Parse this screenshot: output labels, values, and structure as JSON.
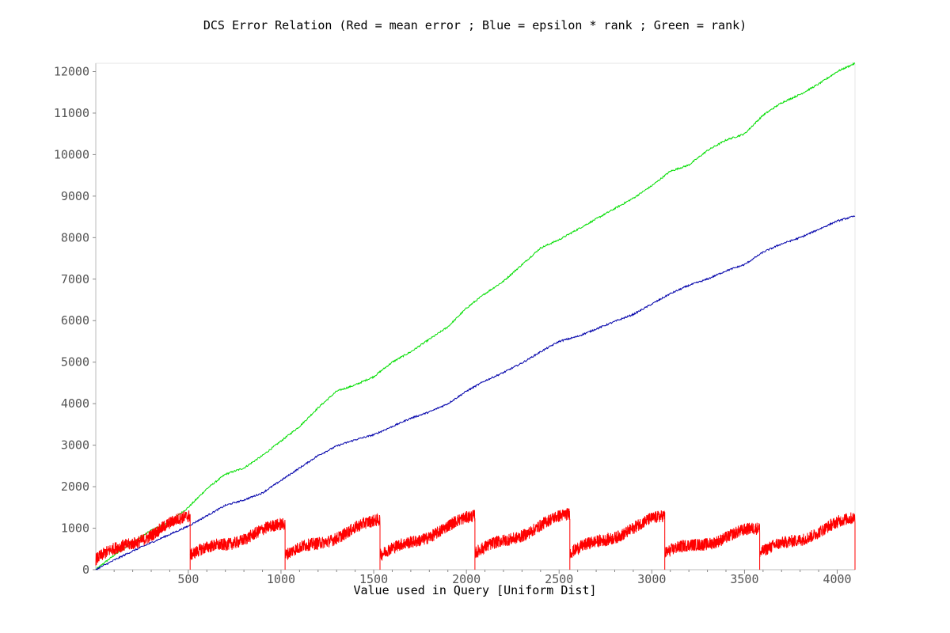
{
  "chart_data": {
    "type": "line",
    "title": "DCS Error Relation (Red = mean error ; Blue = epsilon * rank ; Green = rank)",
    "xlabel": "Value used in Query [Uniform Dist]",
    "ylabel": "",
    "xlim": [
      1,
      4096
    ],
    "ylim": [
      0,
      12200
    ],
    "xticks": [
      500,
      1000,
      1500,
      2000,
      2500,
      3000,
      3500,
      4000
    ],
    "yticks": [
      0,
      1000,
      2000,
      3000,
      4000,
      5000,
      6000,
      7000,
      8000,
      9000,
      10000,
      11000,
      12000
    ],
    "grid": false,
    "colors": {
      "green": "#00dd00",
      "blue": "#0000aa",
      "red": "#ff0000"
    },
    "series": [
      {
        "color": "#00dd00",
        "x": [
          0,
          100,
          200,
          300,
          400,
          500,
          600,
          700,
          800,
          900,
          1000,
          1100,
          1200,
          1300,
          1400,
          1500,
          1600,
          1700,
          1800,
          1900,
          2000,
          2100,
          2200,
          2300,
          2400,
          2500,
          2600,
          2700,
          2800,
          2900,
          3000,
          3100,
          3200,
          3300,
          3400,
          3500,
          3600,
          3700,
          3800,
          3900,
          4000,
          4096
        ],
        "y": [
          0,
          350,
          650,
          950,
          1150,
          1500,
          1950,
          2300,
          2450,
          2750,
          3100,
          3450,
          3900,
          4300,
          4450,
          4650,
          5000,
          5250,
          5550,
          5850,
          6300,
          6650,
          6950,
          7350,
          7750,
          7950,
          8200,
          8450,
          8700,
          8950,
          9250,
          9600,
          9750,
          10100,
          10350,
          10500,
          10950,
          11250,
          11450,
          11700,
          12000,
          12200
        ]
      },
      {
        "color": "#0000aa",
        "x": [
          0,
          100,
          200,
          300,
          400,
          500,
          600,
          700,
          800,
          900,
          1000,
          1100,
          1200,
          1300,
          1400,
          1500,
          1600,
          1700,
          1800,
          1900,
          2000,
          2100,
          2200,
          2300,
          2400,
          2500,
          2600,
          2700,
          2800,
          2900,
          3000,
          3100,
          3200,
          3300,
          3400,
          3500,
          3600,
          3700,
          3800,
          3900,
          4000,
          4096
        ],
        "y": [
          0,
          230,
          450,
          650,
          850,
          1050,
          1300,
          1550,
          1680,
          1850,
          2150,
          2450,
          2750,
          2980,
          3130,
          3250,
          3450,
          3650,
          3800,
          4000,
          4300,
          4550,
          4750,
          4980,
          5250,
          5500,
          5620,
          5800,
          5980,
          6150,
          6400,
          6650,
          6850,
          7000,
          7200,
          7350,
          7650,
          7850,
          8000,
          8200,
          8400,
          8520
        ]
      },
      {
        "color": "#ff0000",
        "segments": [
          {
            "x": [
              1,
              510
            ],
            "y": [
              250,
              1300
            ]
          },
          {
            "x": [
              511,
              1022
            ],
            "y": [
              350,
              1100
            ]
          },
          {
            "x": [
              1023,
              1534
            ],
            "y": [
              350,
              1200
            ]
          },
          {
            "x": [
              1535,
              2046
            ],
            "y": [
              350,
              1300
            ]
          },
          {
            "x": [
              2047,
              2558
            ],
            "y": [
              400,
              1350
            ]
          },
          {
            "x": [
              2559,
              3070
            ],
            "y": [
              400,
              1300
            ]
          },
          {
            "x": [
              3071,
              3582
            ],
            "y": [
              400,
              1000
            ]
          },
          {
            "x": [
              3583,
              4096
            ],
            "y": [
              400,
              1250
            ]
          }
        ]
      }
    ]
  }
}
